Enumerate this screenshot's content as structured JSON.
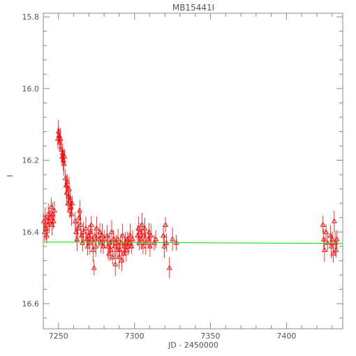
{
  "chart_data": {
    "type": "scatter",
    "title": "MB15441I",
    "xlabel": "JD - 2450000",
    "ylabel": "I",
    "xlim": [
      7240,
      7437
    ],
    "ylim": [
      16.67,
      15.79
    ],
    "y_inverted": true,
    "grid": false,
    "legend": "none",
    "x_ticks": [
      7250,
      7300,
      7350,
      7400
    ],
    "x_tick_labels": [
      "7250",
      "7300",
      "7350",
      "7400"
    ],
    "y_ticks": [
      15.8,
      16.0,
      16.2,
      16.4,
      16.6
    ],
    "y_tick_labels": [
      "15.8",
      "16.0",
      "16.2",
      "16.4",
      "16.6"
    ],
    "colors": {
      "points": "#ff0000",
      "model": "#00dd00",
      "axes": "#888888",
      "text": "#555555"
    },
    "model_line": {
      "x": [
        7240,
        7437
      ],
      "y": [
        16.428,
        16.432
      ]
    },
    "series": [
      {
        "marker": "open-triangle",
        "x": [
          7240.3,
          7240.8,
          7241.3,
          7241.8,
          7242.3,
          7242.8,
          7243.3,
          7244.0,
          7244.6,
          7245.2,
          7245.8,
          7246.3,
          7246.8,
          7247.3,
          7249.6,
          7250.0,
          7250.4,
          7250.8,
          7251.2,
          7252.0,
          7252.4,
          7252.8,
          7253.2,
          7253.6,
          7254.0,
          7254.6,
          7255.0,
          7255.4,
          7255.8,
          7256.2,
          7256.6,
          7257.0,
          7257.4,
          7257.8,
          7258.2,
          7258.6,
          7259.0,
          7261.0,
          7261.6,
          7262.2,
          7262.8,
          7263.4,
          7264.0,
          7264.6,
          7265.2,
          7265.8,
          7266.4,
          7268.0,
          7268.6,
          7269.2,
          7269.8,
          7270.4,
          7271.0,
          7271.6,
          7272.2,
          7272.8,
          7273.4,
          7274.0,
          7274.6,
          7275.2,
          7276.5,
          7277.2,
          7278.0,
          7278.8,
          7279.5,
          7280.3,
          7282.0,
          7282.6,
          7283.2,
          7283.8,
          7284.4,
          7285.0,
          7285.6,
          7286.2,
          7286.8,
          7287.4,
          7288.0,
          7288.6,
          7289.2,
          7289.8,
          7290.4,
          7291.0,
          7291.6,
          7292.2,
          7292.8,
          7293.4,
          7294.0,
          7294.6,
          7295.2,
          7295.8,
          7296.5,
          7297.2,
          7298.0,
          7298.8,
          7302.0,
          7302.6,
          7303.2,
          7303.8,
          7304.4,
          7305.0,
          7305.6,
          7306.2,
          7306.8,
          7307.4,
          7309.0,
          7309.6,
          7310.2,
          7310.8,
          7313.0,
          7314.0,
          7319.0,
          7319.6,
          7320.4,
          7321.0,
          7323.0,
          7325.0,
          7327.5,
          7424.0,
          7424.5,
          7425.0,
          7426.0,
          7427.0,
          7429.0,
          7429.5,
          7430.2,
          7430.8,
          7431.4,
          7432.0,
          7432.6,
          7433.2
        ],
        "y": [
          16.37,
          16.4,
          16.36,
          16.39,
          16.41,
          16.38,
          16.35,
          16.37,
          16.36,
          16.33,
          16.38,
          16.35,
          16.37,
          16.34,
          16.14,
          16.12,
          16.13,
          16.15,
          16.14,
          16.17,
          16.19,
          16.18,
          16.2,
          16.21,
          16.19,
          16.25,
          16.27,
          16.29,
          16.26,
          16.32,
          16.3,
          16.28,
          16.34,
          16.31,
          16.33,
          16.35,
          16.32,
          16.37,
          16.4,
          16.42,
          16.39,
          16.36,
          16.34,
          16.38,
          16.41,
          16.43,
          16.4,
          16.39,
          16.42,
          16.44,
          16.41,
          16.43,
          16.4,
          16.38,
          16.42,
          16.45,
          16.5,
          16.41,
          16.44,
          16.39,
          16.42,
          16.4,
          16.43,
          16.41,
          16.44,
          16.42,
          16.41,
          16.44,
          16.46,
          16.43,
          16.45,
          16.4,
          16.47,
          16.42,
          16.44,
          16.49,
          16.43,
          16.45,
          16.42,
          16.47,
          16.45,
          16.43,
          16.48,
          16.41,
          16.46,
          16.44,
          16.43,
          16.45,
          16.42,
          16.44,
          16.43,
          16.41,
          16.44,
          16.42,
          16.41,
          16.39,
          16.43,
          16.4,
          16.42,
          16.38,
          16.44,
          16.41,
          16.39,
          16.43,
          16.42,
          16.4,
          16.44,
          16.41,
          16.43,
          16.42,
          16.41,
          16.44,
          16.38,
          16.43,
          16.5,
          16.42,
          16.43,
          16.38,
          16.42,
          16.45,
          16.4,
          16.43,
          16.41,
          16.44,
          16.42,
          16.46,
          16.37,
          16.43,
          16.45,
          16.42
        ]
      }
    ]
  }
}
